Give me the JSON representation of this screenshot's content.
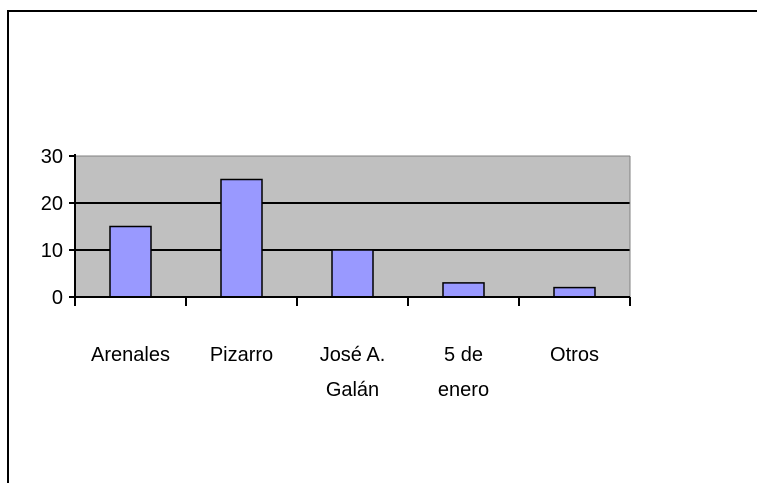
{
  "chart_data": {
    "type": "bar",
    "categories": [
      "Arenales",
      "Pizarro",
      "José A. Galán",
      "5 de enero",
      "Otros"
    ],
    "category_lines": [
      [
        "Arenales"
      ],
      [
        "Pizarro"
      ],
      [
        "José A.",
        "Galán"
      ],
      [
        "5 de",
        "enero"
      ],
      [
        "Otros"
      ]
    ],
    "values": [
      15,
      25,
      10,
      3,
      2
    ],
    "ylim": [
      0,
      30
    ],
    "yticks": [
      0,
      10,
      20,
      30
    ],
    "grid": true,
    "legend": "none",
    "colors": {
      "bar": "#9999ff",
      "plot_background": "#c0c0c0",
      "gridline": "#000000"
    }
  }
}
